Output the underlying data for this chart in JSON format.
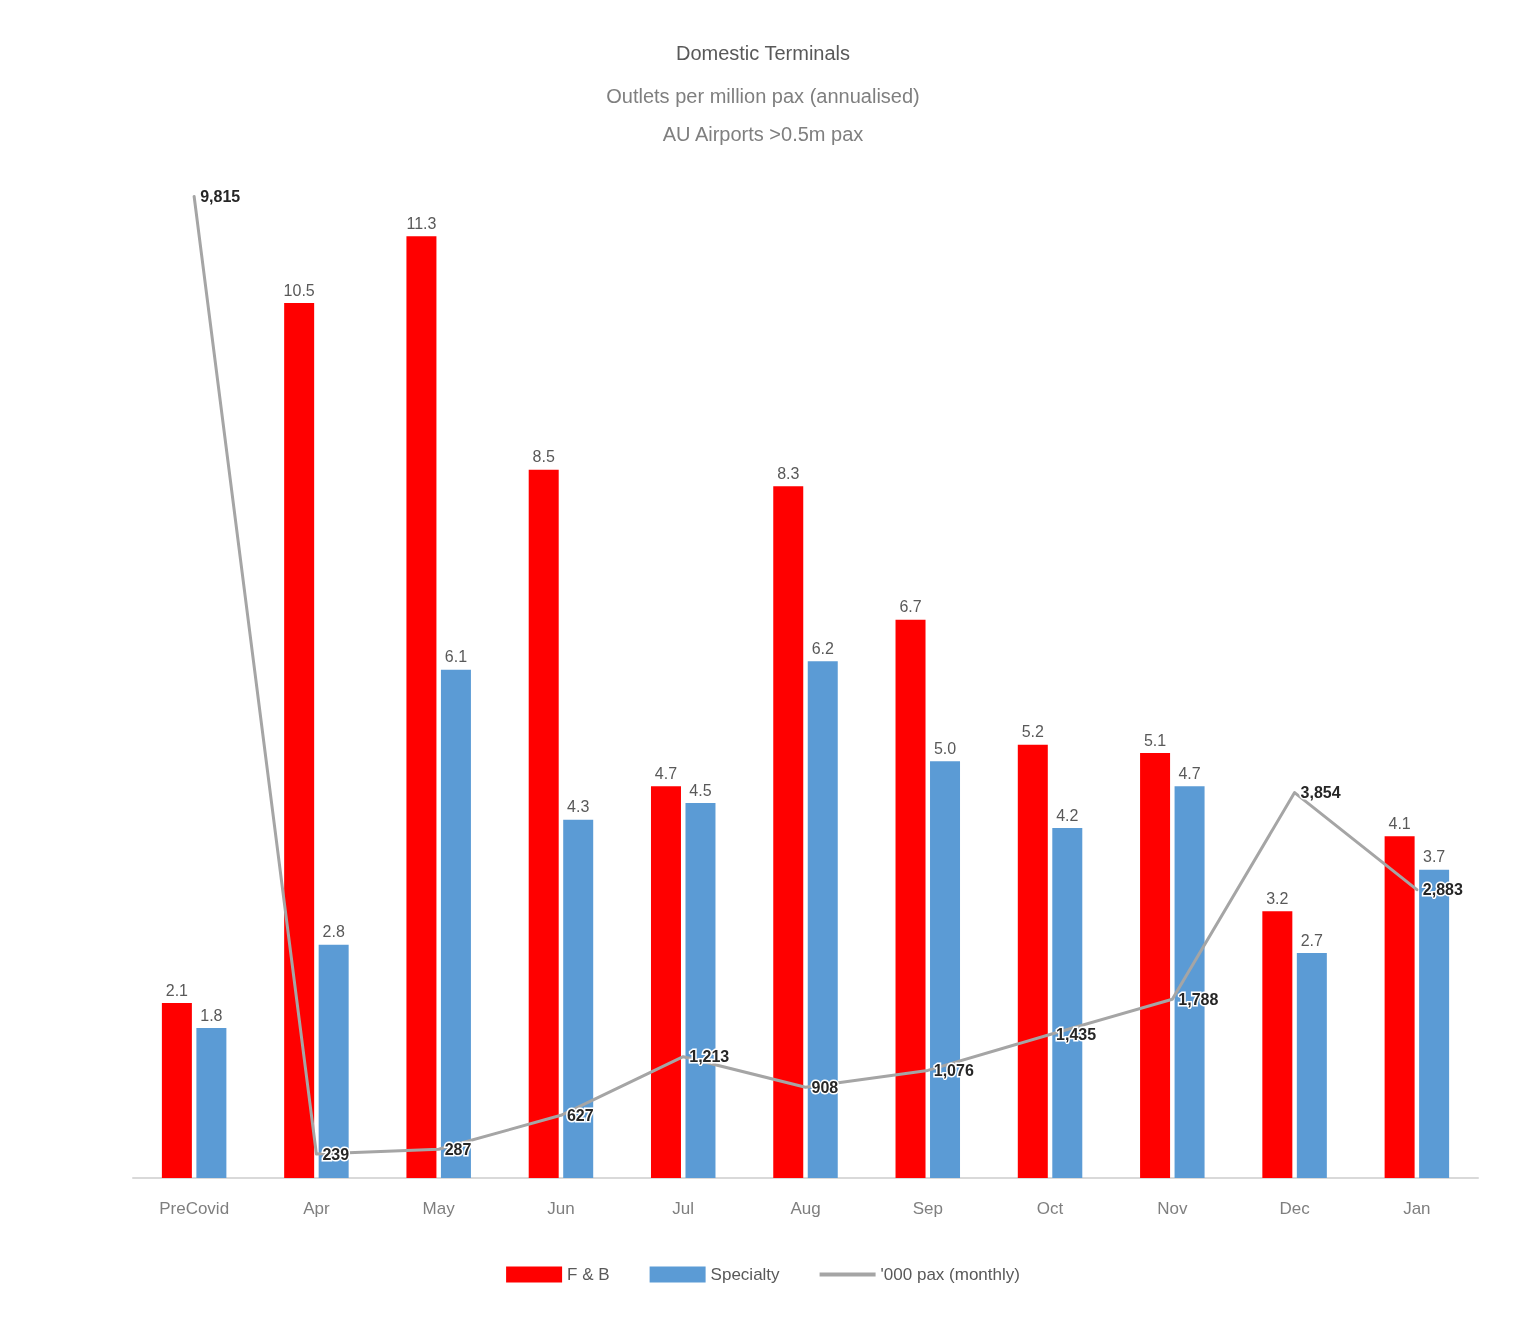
{
  "chart_data": {
    "type": "bar",
    "title": "Domestic Terminals",
    "subtitle": "Outlets per million pax (annualised)\nAU Airports >0.5m pax",
    "categories": [
      "PreCovid",
      "Apr",
      "May",
      "Jun",
      "Jul",
      "Aug",
      "Sep",
      "Oct",
      "Nov",
      "Dec",
      "Jan"
    ],
    "series": [
      {
        "name": "F & B",
        "color": "#ff0000",
        "values": [
          2.1,
          10.5,
          11.3,
          8.5,
          4.7,
          8.3,
          6.7,
          5.2,
          5.1,
          3.2,
          4.1
        ]
      },
      {
        "name": "Specialty",
        "color": "#5b9bd5",
        "values": [
          1.8,
          2.8,
          6.1,
          4.3,
          4.5,
          6.2,
          5.0,
          4.2,
          4.7,
          2.7,
          3.7
        ],
        "value_labels": [
          "1.8",
          "2.8",
          "6.1",
          "4.3",
          "4.5",
          "6.2",
          "5.0",
          "4.2",
          "4.7",
          "2.7",
          "3.7"
        ]
      },
      {
        "name": "'000 pax (monthly)",
        "type": "line",
        "axis": "y2",
        "color": "#a5a5a5",
        "values": [
          9815,
          239,
          287,
          627,
          1213,
          908,
          1076,
          1435,
          1788,
          3854,
          2883
        ],
        "value_labels": [
          "9,815",
          "239",
          "287",
          "627",
          "1,213",
          "908",
          "1,076",
          "1,435",
          "1,788",
          "3,854",
          "2,883"
        ]
      }
    ],
    "data_labels": true,
    "legend": "bottom",
    "grid": false,
    "tick_labels": "x",
    "marker": "none",
    "line_style": "solid"
  }
}
